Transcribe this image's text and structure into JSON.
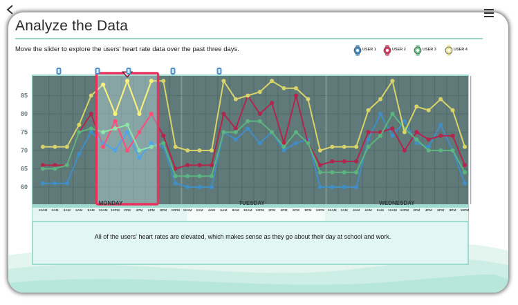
{
  "header": {
    "title": "Analyze the Data",
    "instruction": "Move the slider to explore the users' heart rate data over the past three days."
  },
  "nav": {
    "back_icon": "chevron-left-icon",
    "menu_icon": "menu-list-icon"
  },
  "legend": [
    {
      "label": "USER 1",
      "color": "#3f8ec8",
      "icon": "heart-rate-watch-icon"
    },
    {
      "label": "USER 2",
      "color": "#e0345e",
      "icon": "heart-rate-watch-icon"
    },
    {
      "label": "USER 3",
      "color": "#6cc58a",
      "icon": "heart-rate-watch-icon"
    },
    {
      "label": "USER 4",
      "color": "#ece79a",
      "icon": "heart-rate-watch-icon"
    }
  ],
  "chart_data": {
    "type": "line",
    "title": "",
    "xlabel": "",
    "ylabel": "",
    "ylim": [
      55,
      90
    ],
    "y_ticks": [
      60,
      65,
      70,
      75,
      80,
      85
    ],
    "days": [
      "MONDAY",
      "TUESDAY",
      "WEDNESDAY"
    ],
    "x": [
      "12AM",
      "2AM",
      "4AM",
      "6AM",
      "8AM",
      "10AM",
      "12PM",
      "2PM",
      "4PM",
      "6PM",
      "8PM",
      "10PM",
      "12AM",
      "2AM",
      "4AM",
      "6AM",
      "8AM",
      "10AM",
      "12PM",
      "2PM",
      "4PM",
      "6PM",
      "8PM",
      "10PM",
      "12AM",
      "2AM",
      "4AM",
      "6AM",
      "8AM",
      "10AM",
      "12PM",
      "2PM",
      "4PM",
      "6PM",
      "8PM",
      "10PM"
    ],
    "series": [
      {
        "name": "USER 1",
        "color": "#3f8ec8",
        "values": [
          61,
          61,
          61,
          69,
          75,
          72,
          70,
          75,
          68,
          72,
          71,
          61,
          60,
          60,
          60,
          75,
          73,
          76,
          72,
          75,
          70,
          72,
          73,
          60,
          60,
          60,
          60,
          73,
          80,
          74,
          78,
          72,
          71,
          77,
          70,
          61
        ]
      },
      {
        "name": "USER 2",
        "color": "#b3254d",
        "values": [
          66,
          66,
          66,
          75,
          80,
          71,
          78,
          70,
          75,
          80,
          74,
          65,
          66,
          66,
          66,
          80,
          76,
          85,
          80,
          83,
          72,
          85,
          72,
          66,
          67,
          67,
          67,
          75,
          75,
          76,
          70,
          75,
          73,
          74,
          74,
          66
        ]
      },
      {
        "name": "USER 3",
        "color": "#5cb57e",
        "values": [
          65,
          65,
          66,
          75,
          76,
          75,
          76,
          77,
          70,
          71,
          72,
          63,
          63,
          63,
          63,
          75,
          75,
          78,
          78,
          75,
          71,
          75,
          72,
          64,
          64,
          64,
          64,
          71,
          74,
          80,
          76,
          73,
          70,
          70,
          70,
          64
        ]
      },
      {
        "name": "USER 4",
        "color": "#d9d46a",
        "values": [
          71,
          71,
          71,
          77,
          85,
          88,
          80,
          89,
          80,
          89,
          89,
          71,
          70,
          70,
          70,
          89,
          84,
          85,
          86,
          89,
          87,
          87,
          84,
          70,
          71,
          71,
          71,
          81,
          84,
          89,
          75,
          82,
          81,
          84,
          81,
          71
        ]
      }
    ],
    "selection_window": {
      "from": "10AM",
      "to": "6PM",
      "day": "MONDAY"
    }
  },
  "summary": "All of the users' heart rates are elevated, which makes sense as they go about their day at school and work."
}
